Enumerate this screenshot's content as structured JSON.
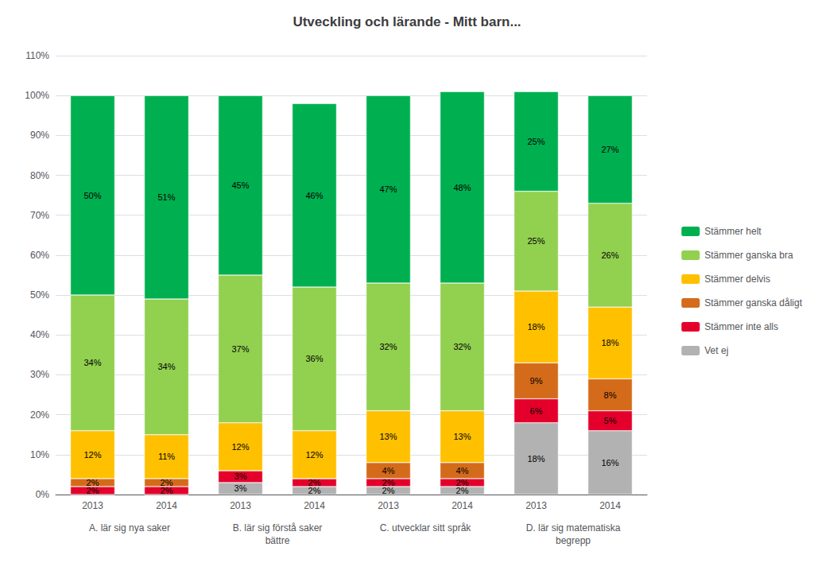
{
  "chart_data": {
    "type": "bar",
    "title": "Utveckling och lärande - Mitt barn...",
    "stacked": true,
    "categories": [
      "2013",
      "2014",
      "2013",
      "2014",
      "2013",
      "2014",
      "2013",
      "2014"
    ],
    "group_labels": [
      "A. lär sig nya saker",
      "B. lär sig förstå saker\nbättre",
      "C. utvecklar sitt språk",
      "D. lär sig matematiska\nbegrepp"
    ],
    "series": [
      {
        "name": "Vet ej",
        "color": "#b2b2b2",
        "values": [
          0,
          0,
          3,
          2,
          2,
          2,
          18,
          16
        ],
        "value_labels": [
          null,
          null,
          "3%",
          "2%",
          "2%",
          "2%",
          "18%",
          "16%"
        ]
      },
      {
        "name": "Stämmer inte alls",
        "color": "#e4002b",
        "values": [
          2,
          2,
          3,
          2,
          2,
          2,
          6,
          5
        ],
        "value_labels": [
          "2%",
          "2%",
          "3%",
          "2%",
          "2%",
          "2%",
          "6%",
          "5%"
        ]
      },
      {
        "name": "Stämmer ganska dåligt",
        "color": "#d46b1a",
        "values": [
          2,
          2,
          0,
          0,
          4,
          4,
          9,
          8
        ],
        "value_labels": [
          "2%",
          "2%",
          null,
          null,
          "4%",
          "4%",
          "9%",
          "8%"
        ]
      },
      {
        "name": "Stämmer delvis",
        "color": "#ffc000",
        "values": [
          12,
          11,
          12,
          12,
          13,
          13,
          18,
          18
        ],
        "value_labels": [
          "12%",
          "11%",
          "12%",
          "12%",
          "13%",
          "13%",
          "18%",
          "18%"
        ]
      },
      {
        "name": "Stämmer ganska bra",
        "color": "#92d050",
        "values": [
          34,
          34,
          37,
          36,
          32,
          32,
          25,
          26
        ],
        "value_labels": [
          "34%",
          "34%",
          "37%",
          "36%",
          "32%",
          "32%",
          "25%",
          "26%"
        ]
      },
      {
        "name": "Stämmer helt",
        "color": "#00b050",
        "values": [
          50,
          51,
          45,
          46,
          47,
          48,
          25,
          27
        ],
        "value_labels": [
          "50%",
          "51%",
          "45%",
          "46%",
          "47%",
          "48%",
          "25%",
          "27%"
        ]
      }
    ],
    "data_labels": true,
    "ylim": [
      0,
      110
    ],
    "yticks": [
      {
        "value": 0,
        "label": "0%"
      },
      {
        "value": 10,
        "label": "10%"
      },
      {
        "value": 20,
        "label": "20%"
      },
      {
        "value": 30,
        "label": "30%"
      },
      {
        "value": 40,
        "label": "40%"
      },
      {
        "value": 50,
        "label": "50%"
      },
      {
        "value": 60,
        "label": "60%"
      },
      {
        "value": 70,
        "label": "70%"
      },
      {
        "value": 80,
        "label": "80%"
      },
      {
        "value": 90,
        "label": "90%"
      },
      {
        "value": 100,
        "label": "100%"
      },
      {
        "value": 110,
        "label": "110%"
      }
    ],
    "grid": true,
    "legend": "right"
  }
}
